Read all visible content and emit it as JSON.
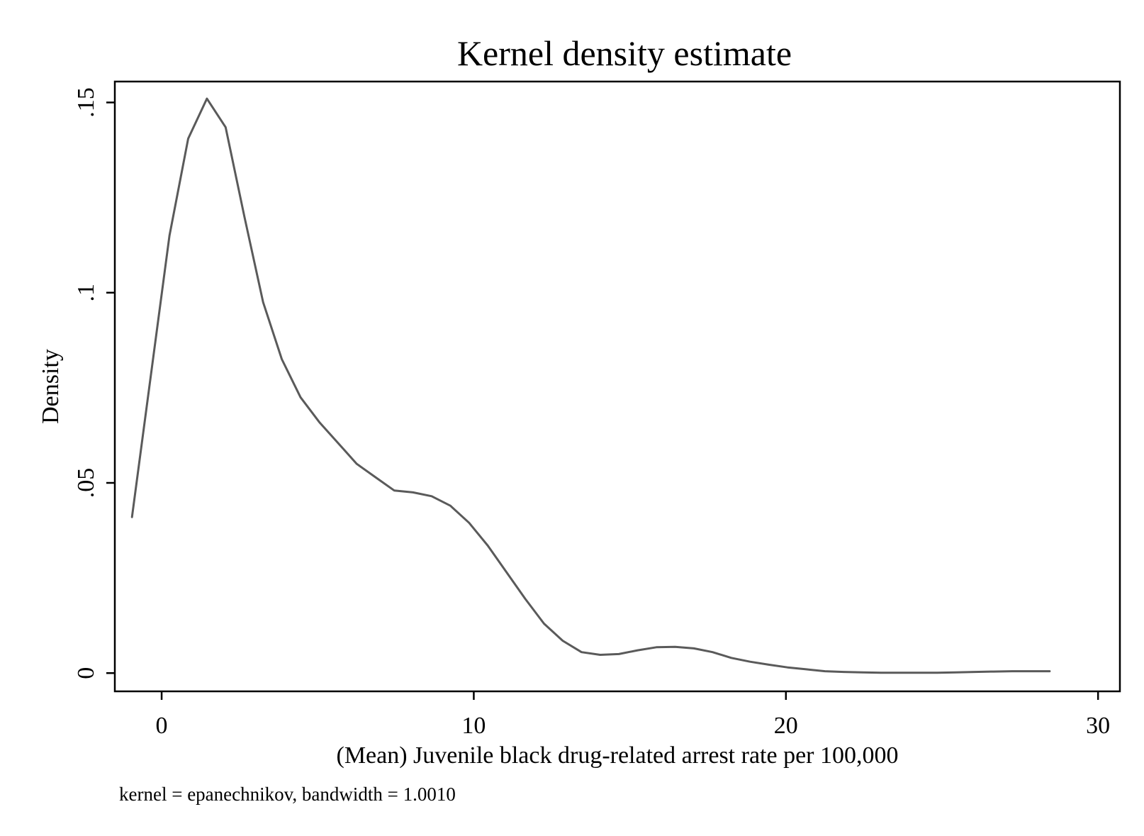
{
  "chart_data": {
    "type": "line",
    "title": "Kernel density estimate",
    "xlabel": "(Mean) Juvenile black drug-related arrest rate per 100,000",
    "ylabel": "Density",
    "note": "kernel = epanechnikov, bandwidth = 1.0010",
    "xlim": [
      -1.5,
      30.7
    ],
    "ylim": [
      -0.0048,
      0.1555
    ],
    "x_ticks": [
      {
        "value": 0,
        "label": "0"
      },
      {
        "value": 10,
        "label": "10"
      },
      {
        "value": 20,
        "label": "20"
      },
      {
        "value": 30,
        "label": "30"
      }
    ],
    "y_ticks": [
      {
        "value": 0,
        "label": "0"
      },
      {
        "value": 0.05,
        "label": ".05"
      },
      {
        "value": 0.1,
        "label": ".1"
      },
      {
        "value": 0.15,
        "label": ".15"
      }
    ],
    "grid": false,
    "legend": "none",
    "line_color": "#5a5a5a",
    "series": [
      {
        "x": [
          -0.95,
          0.25,
          0.85,
          1.45,
          2.05,
          2.65,
          3.25,
          3.85,
          4.45,
          5.05,
          5.65,
          6.25,
          6.85,
          7.45,
          8.05,
          8.65,
          9.25,
          9.85,
          10.45,
          11.05,
          11.65,
          12.25,
          12.85,
          13.45,
          14.05,
          14.65,
          15.25,
          15.85,
          16.45,
          17.05,
          17.65,
          18.25,
          18.85,
          19.45,
          20.05,
          20.65,
          21.25,
          21.85,
          22.45,
          23.05,
          23.65,
          24.25,
          24.85,
          25.45,
          26.05,
          26.65,
          27.25,
          27.85,
          28.45
        ],
        "y": [
          0.041,
          0.115,
          0.1405,
          0.151,
          0.1435,
          0.12,
          0.0975,
          0.0825,
          0.0725,
          0.066,
          0.0605,
          0.055,
          0.0515,
          0.048,
          0.0475,
          0.0465,
          0.044,
          0.0395,
          0.0335,
          0.0265,
          0.0195,
          0.013,
          0.0085,
          0.0055,
          0.0048,
          0.005,
          0.006,
          0.0068,
          0.0069,
          0.0065,
          0.0055,
          0.004,
          0.003,
          0.0022,
          0.0015,
          0.001,
          0.0005,
          0.0003,
          0.0002,
          0.0001,
          0.0001,
          0.0001,
          0.0001,
          0.0002,
          0.0003,
          0.0004,
          0.0005,
          0.0005,
          0.0005
        ]
      }
    ]
  }
}
